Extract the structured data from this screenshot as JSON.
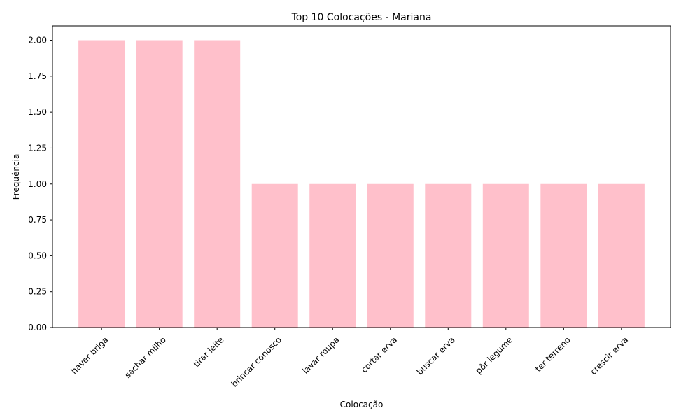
{
  "chart_data": {
    "type": "bar",
    "title": "Top 10 Colocações - Mariana",
    "xlabel": "Colocação",
    "ylabel": "Frequência",
    "categories": [
      "haver briga",
      "sachar milho",
      "tirar leite",
      "brincar conosco",
      "lavar roupa",
      "cortar erva",
      "buscar erva",
      "pôr legume",
      "ter terreno",
      "crescir erva"
    ],
    "values": [
      2,
      2,
      2,
      1,
      1,
      1,
      1,
      1,
      1,
      1
    ],
    "ylim": [
      0,
      2.1
    ],
    "yticks": [
      "0.00",
      "0.25",
      "0.50",
      "0.75",
      "1.00",
      "1.25",
      "1.50",
      "1.75",
      "2.00"
    ],
    "bar_color": "#ffc0cb",
    "grid": false,
    "legend": "none"
  }
}
